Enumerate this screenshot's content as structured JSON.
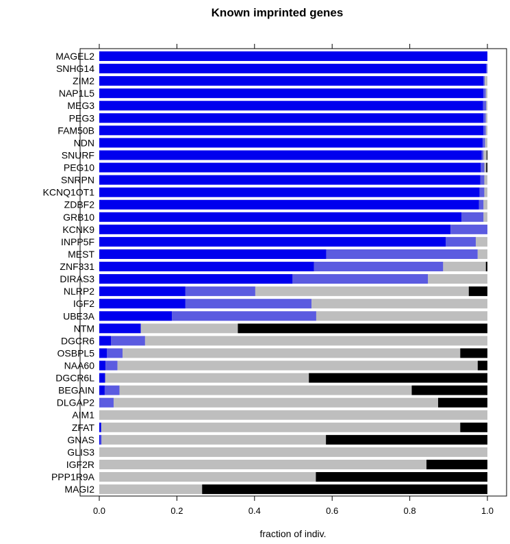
{
  "chart_data": {
    "type": "bar",
    "orientation": "horizontal",
    "stacked": true,
    "title": "Known imprinted genes",
    "xlabel": "fraction of indiv.",
    "ylabel": "",
    "xlim": [
      0,
      1
    ],
    "xticks": [
      "0.0",
      "0.2",
      "0.4",
      "0.6",
      "0.8",
      "1.0"
    ],
    "legend": "none",
    "grid": false,
    "categories": [
      "MAGEL2",
      "SNHG14",
      "ZIM2",
      "NAP1L5",
      "MEG3",
      "PEG3",
      "FAM50B",
      "NDN",
      "SNURF",
      "PEG10",
      "SNRPN",
      "KCNQ1OT1",
      "ZDBF2",
      "GRB10",
      "KCNK9",
      "INPP5F",
      "MEST",
      "ZNF331",
      "DIRAS3",
      "NLRP2",
      "IGF2",
      "UBE3A",
      "NTM",
      "DGCR6",
      "OSBPL5",
      "NAA60",
      "DGCR6L",
      "BEGAIN",
      "DLGAP2",
      "AIM1",
      "ZFAT",
      "GNAS",
      "GLIS3",
      "IGF2R",
      "PPP1R9A",
      "MAGI2"
    ],
    "series": [
      {
        "color": "#0000ee",
        "values": [
          1.0,
          0.997,
          0.99,
          0.99,
          0.989,
          0.99,
          0.99,
          0.988,
          0.985,
          0.983,
          0.982,
          0.98,
          0.978,
          0.933,
          0.905,
          0.893,
          0.585,
          0.553,
          0.498,
          0.222,
          0.222,
          0.187,
          0.107,
          0.03,
          0.02,
          0.016,
          0.015,
          0.014,
          0.0,
          0.0,
          0.005,
          0.003,
          0.0,
          0.0,
          0.0,
          0.0
        ]
      },
      {
        "color": "#5b5be0",
        "values": [
          0.0,
          0.003,
          0.003,
          0.006,
          0.008,
          0.006,
          0.006,
          0.006,
          0.005,
          0.009,
          0.01,
          0.012,
          0.012,
          0.057,
          0.095,
          0.077,
          0.39,
          0.333,
          0.349,
          0.18,
          0.325,
          0.372,
          0.0,
          0.088,
          0.04,
          0.031,
          0.0,
          0.038,
          0.037,
          0.0,
          0.0,
          0.003,
          0.0,
          0.0,
          0.0,
          0.0
        ]
      },
      {
        "color": "#bebebe",
        "values": [
          0.0,
          0.0,
          0.007,
          0.004,
          0.003,
          0.004,
          0.004,
          0.006,
          0.008,
          0.005,
          0.008,
          0.008,
          0.01,
          0.01,
          0.0,
          0.03,
          0.025,
          0.11,
          0.153,
          0.55,
          0.453,
          0.441,
          0.25,
          0.882,
          0.87,
          0.928,
          0.525,
          0.753,
          0.836,
          1.0,
          0.925,
          0.578,
          1.0,
          0.843,
          0.558,
          0.265
        ]
      },
      {
        "color": "#000000",
        "values": [
          0.0,
          0.0,
          0.0,
          0.0,
          0.0,
          0.0,
          0.0,
          0.0,
          0.002,
          0.003,
          0.0,
          0.0,
          0.0,
          0.0,
          0.0,
          0.0,
          0.0,
          0.004,
          0.0,
          0.048,
          0.0,
          0.0,
          0.643,
          0.0,
          0.07,
          0.025,
          0.46,
          0.195,
          0.127,
          0.0,
          0.07,
          0.416,
          0.0,
          0.157,
          0.442,
          0.735
        ]
      }
    ]
  }
}
